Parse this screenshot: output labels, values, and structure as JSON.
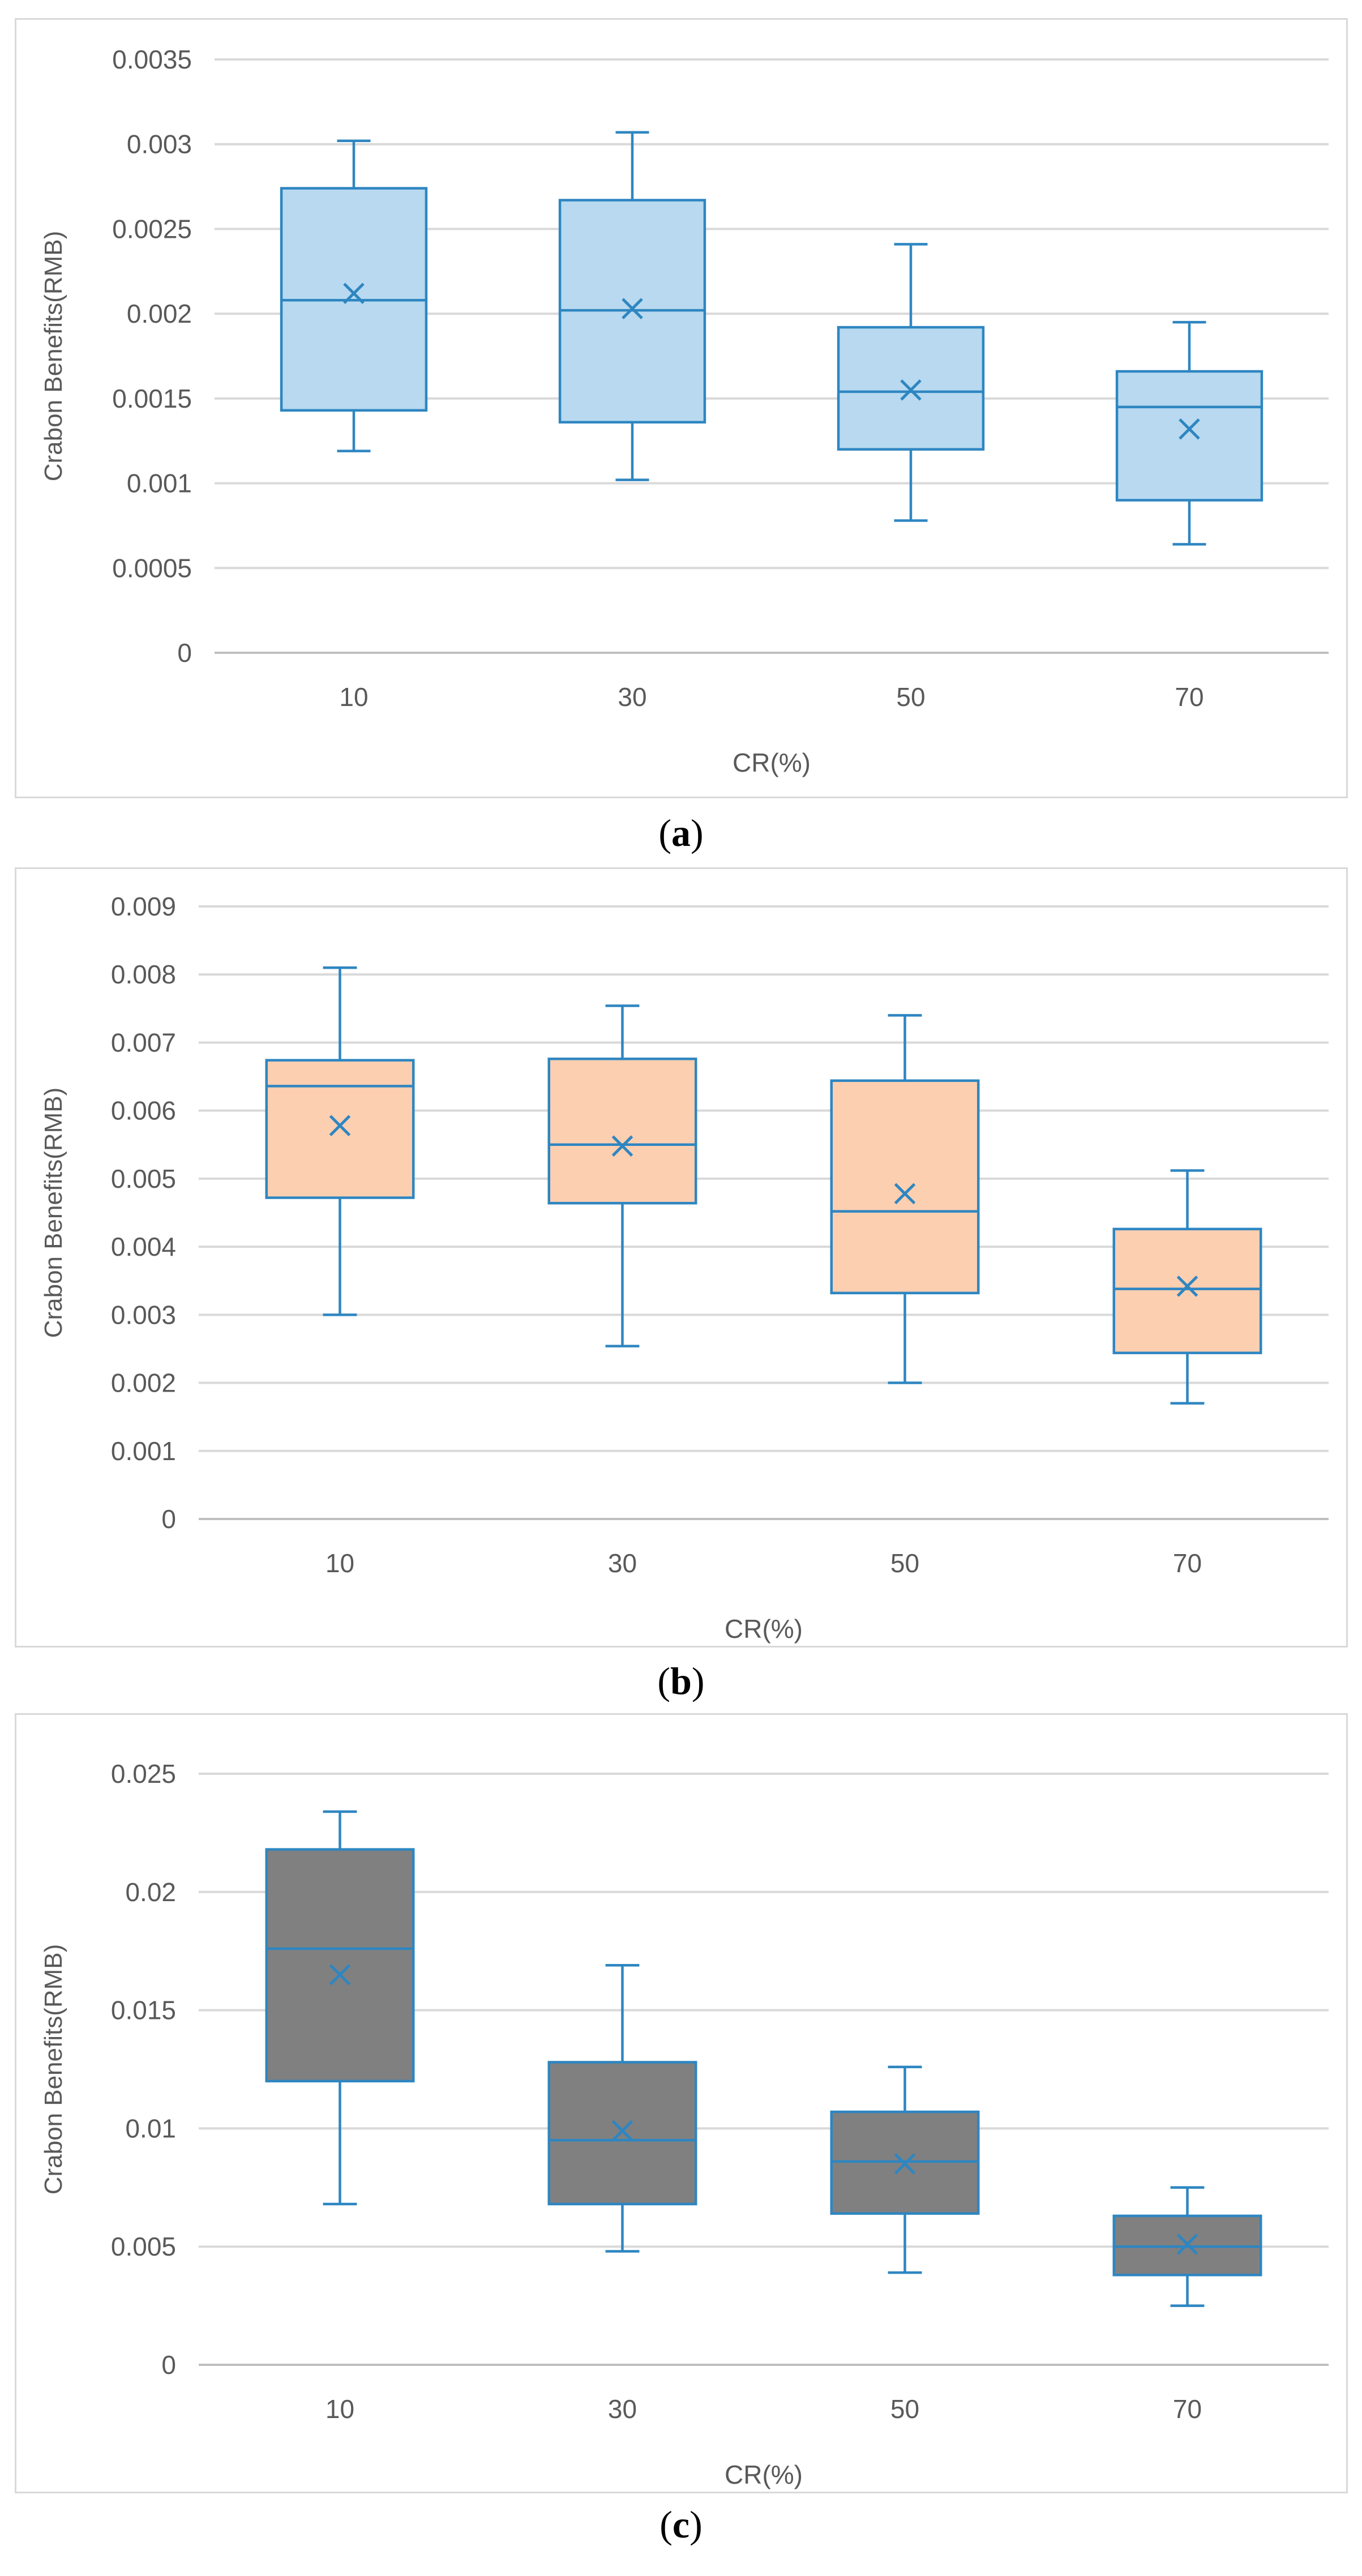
{
  "chart_data": [
    {
      "id": "a",
      "type": "box",
      "title": "",
      "xlabel": "CR(%)",
      "ylabel": "Crabon Benefits(RMB)",
      "ylim": [
        0,
        0.0035
      ],
      "yticks": [
        0,
        0.0005,
        0.001,
        0.0015,
        0.002,
        0.0025,
        0.003,
        0.0035
      ],
      "ytick_labels": [
        "0",
        "0.0005",
        "0.001",
        "0.0015",
        "0.002",
        "0.0025",
        "0.003",
        "0.0035"
      ],
      "categories": [
        "10",
        "30",
        "50",
        "70"
      ],
      "box_fill": "#b8d9f0",
      "stroke": "#2e86c1",
      "caption": "a",
      "boxes": [
        {
          "min": 0.00119,
          "q1": 0.00143,
          "median": 0.00208,
          "q3": 0.00274,
          "max": 0.00302,
          "mean": 0.00212
        },
        {
          "min": 0.00102,
          "q1": 0.00136,
          "median": 0.00202,
          "q3": 0.00267,
          "max": 0.00307,
          "mean": 0.00203
        },
        {
          "min": 0.00078,
          "q1": 0.0012,
          "median": 0.00154,
          "q3": 0.00192,
          "max": 0.00241,
          "mean": 0.00155
        },
        {
          "min": 0.00064,
          "q1": 0.0009,
          "median": 0.00145,
          "q3": 0.00166,
          "max": 0.00195,
          "mean": 0.00132
        }
      ]
    },
    {
      "id": "b",
      "type": "box",
      "title": "",
      "xlabel": "CR(%)",
      "ylabel": "Crabon Benefits(RMB)",
      "ylim": [
        0,
        0.009
      ],
      "yticks": [
        0,
        0.001,
        0.002,
        0.003,
        0.004,
        0.005,
        0.006,
        0.007,
        0.008,
        0.009
      ],
      "ytick_labels": [
        "0",
        "0.001",
        "0.002",
        "0.003",
        "0.004",
        "0.005",
        "0.006",
        "0.007",
        "0.008",
        "0.009"
      ],
      "categories": [
        "10",
        "30",
        "50",
        "70"
      ],
      "box_fill": "#fdcfb1",
      "stroke": "#2e86c1",
      "caption": "b",
      "boxes": [
        {
          "min": 0.003,
          "q1": 0.00472,
          "median": 0.00636,
          "q3": 0.00674,
          "max": 0.0081,
          "mean": 0.00578
        },
        {
          "min": 0.00254,
          "q1": 0.00464,
          "median": 0.0055,
          "q3": 0.00676,
          "max": 0.00754,
          "mean": 0.00548
        },
        {
          "min": 0.002,
          "q1": 0.00332,
          "median": 0.00452,
          "q3": 0.00644,
          "max": 0.0074,
          "mean": 0.00478
        },
        {
          "min": 0.0017,
          "q1": 0.00244,
          "median": 0.00338,
          "q3": 0.00426,
          "max": 0.00512,
          "mean": 0.00342
        }
      ]
    },
    {
      "id": "c",
      "type": "box",
      "title": "",
      "xlabel": "CR(%)",
      "ylabel": "Crabon Benefits(RMB)",
      "ylim": [
        0,
        0.025
      ],
      "yticks": [
        0,
        0.005,
        0.01,
        0.015,
        0.02,
        0.025
      ],
      "ytick_labels": [
        "0",
        "0.005",
        "0.01",
        "0.015",
        "0.02",
        "0.025"
      ],
      "categories": [
        "10",
        "30",
        "50",
        "70"
      ],
      "box_fill": "#808080",
      "stroke": "#2e86c1",
      "caption": "c",
      "boxes": [
        {
          "min": 0.0068,
          "q1": 0.012,
          "median": 0.0176,
          "q3": 0.0218,
          "max": 0.0234,
          "mean": 0.0165
        },
        {
          "min": 0.0048,
          "q1": 0.0068,
          "median": 0.0095,
          "q3": 0.0128,
          "max": 0.0169,
          "mean": 0.0099
        },
        {
          "min": 0.0039,
          "q1": 0.0064,
          "median": 0.0086,
          "q3": 0.0107,
          "max": 0.0126,
          "mean": 0.0085
        },
        {
          "min": 0.0025,
          "q1": 0.0038,
          "median": 0.005,
          "q3": 0.0063,
          "max": 0.0075,
          "mean": 0.0051
        }
      ]
    }
  ]
}
